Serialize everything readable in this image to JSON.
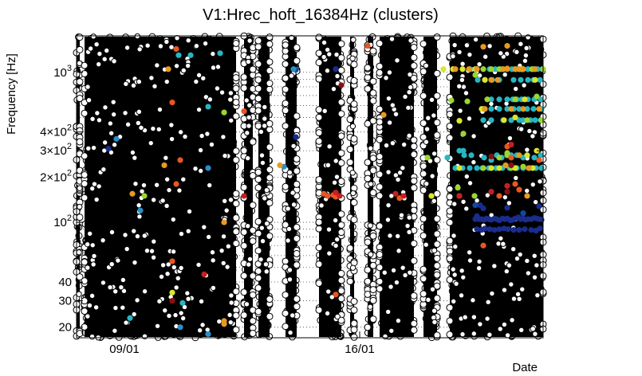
{
  "chart_data": {
    "type": "scatter",
    "title": "V1:Hrec_hoft_16384Hz (clusters)",
    "xlabel": "Date",
    "ylabel": "Frequency [Hz]",
    "yscale": "log",
    "ylim": [
      17,
      1750
    ],
    "xlim": [
      0,
      585
    ],
    "grid": "dotted horizontal at 10^2 and 10^3",
    "x_ticks": [
      {
        "x": 60,
        "label": "09/01"
      },
      {
        "x": 355,
        "label": "16/01"
      }
    ],
    "y_ticks": [
      {
        "value": 20,
        "mantissa": "20",
        "exp": ""
      },
      {
        "value": 30,
        "mantissa": "30",
        "exp": ""
      },
      {
        "value": 40,
        "mantissa": "40",
        "exp": ""
      },
      {
        "value": 100,
        "mantissa": "10",
        "exp": "2"
      },
      {
        "value": 200,
        "mantissa": "2×10",
        "exp": "2"
      },
      {
        "value": 300,
        "mantissa": "3×10",
        "exp": "2"
      },
      {
        "value": 400,
        "mantissa": "4×10",
        "exp": "2"
      },
      {
        "value": 1000,
        "mantissa": "10",
        "exp": "3"
      }
    ],
    "background_clusters": {
      "marker": "open black circle",
      "dense_columns": [
        [
          -2,
          4
        ],
        [
          10,
          200
        ],
        [
          210,
          221
        ],
        [
          228,
          242
        ],
        [
          262,
          276
        ],
        [
          304,
          332
        ],
        [
          343,
          348
        ],
        [
          365,
          372
        ],
        [
          380,
          423
        ],
        [
          435,
          452
        ],
        [
          468,
          585
        ]
      ],
      "y_range": [
        17,
        1750
      ]
    },
    "series": [
      {
        "color": "#1a2c8c",
        "points": [
          [
            40,
            310
          ],
          [
            275,
            370
          ],
          [
            325,
            1050
          ],
          [
            325,
            1050
          ],
          [
            500,
            105
          ],
          [
            502,
            110
          ],
          [
            505,
            105
          ],
          [
            508,
            105
          ],
          [
            511,
            104
          ],
          [
            514,
            106
          ],
          [
            517,
            105
          ],
          [
            520,
            104
          ],
          [
            524,
            106
          ],
          [
            527,
            105
          ],
          [
            530,
            103
          ],
          [
            534,
            106
          ],
          [
            537,
            105
          ],
          [
            540,
            106
          ],
          [
            544,
            103
          ],
          [
            547,
            104
          ],
          [
            550,
            106
          ],
          [
            554,
            108
          ],
          [
            557,
            105
          ],
          [
            560,
            106
          ],
          [
            563,
            104
          ],
          [
            566,
            105
          ],
          [
            570,
            105
          ],
          [
            574,
            107
          ],
          [
            577,
            106
          ],
          [
            580,
            105
          ],
          [
            583,
            104
          ],
          [
            502,
            90
          ],
          [
            508,
            89
          ],
          [
            512,
            91
          ],
          [
            518,
            90
          ],
          [
            524,
            89
          ],
          [
            530,
            90
          ],
          [
            536,
            91
          ],
          [
            541,
            90
          ],
          [
            548,
            89
          ],
          [
            555,
            89
          ],
          [
            562,
            90
          ],
          [
            570,
            89
          ],
          [
            576,
            88
          ],
          [
            581,
            91
          ],
          [
            510,
            124
          ],
          [
            540,
            125
          ],
          [
            580,
            128
          ],
          [
            506,
            130
          ]
        ]
      },
      {
        "color": "#0f4aa0",
        "points": [
          [
            275,
            1040
          ],
          [
            500,
            130
          ],
          [
            560,
            115
          ]
        ]
      },
      {
        "color": "#2b8ec8",
        "points": [
          [
            50,
            360
          ],
          [
            80,
            120
          ],
          [
            165,
            230
          ],
          [
            260,
            235
          ],
          [
            272,
            1050
          ],
          [
            130,
            20
          ],
          [
            165,
            18
          ]
        ]
      },
      {
        "color": "#27b5c2",
        "points": [
          [
            165,
            590
          ],
          [
            128,
            1300
          ],
          [
            143,
            1300
          ],
          [
            180,
            1340
          ],
          [
            67,
            23
          ],
          [
            133,
            29
          ],
          [
            465,
            270
          ],
          [
            480,
            300
          ],
          [
            485,
            300
          ],
          [
            502,
            1050
          ],
          [
            518,
            1050
          ],
          [
            525,
            1050
          ],
          [
            532,
            1050
          ],
          [
            540,
            1050
          ],
          [
            546,
            1050
          ],
          [
            551,
            1050
          ],
          [
            555,
            1050
          ],
          [
            560,
            1050
          ],
          [
            566,
            1050
          ],
          [
            573,
            1050
          ],
          [
            578,
            1050
          ],
          [
            584,
            1050
          ],
          [
            520,
            660
          ],
          [
            530,
            660
          ],
          [
            540,
            660
          ],
          [
            547,
            660
          ],
          [
            552,
            660
          ],
          [
            558,
            660
          ],
          [
            566,
            660
          ],
          [
            574,
            660
          ],
          [
            582,
            660
          ],
          [
            510,
            480
          ],
          [
            520,
            480
          ],
          [
            535,
            480
          ],
          [
            545,
            480
          ],
          [
            555,
            480
          ],
          [
            560,
            480
          ],
          [
            569,
            480
          ],
          [
            575,
            480
          ],
          [
            582,
            480
          ],
          [
            486,
            280
          ],
          [
            495,
            280
          ],
          [
            511,
            270
          ],
          [
            520,
            260
          ],
          [
            527,
            280
          ],
          [
            533,
            270
          ],
          [
            540,
            280
          ],
          [
            545,
            280
          ],
          [
            552,
            280
          ],
          [
            560,
            270
          ],
          [
            565,
            280
          ],
          [
            574,
            270
          ],
          [
            582,
            280
          ],
          [
            475,
            230
          ],
          [
            484,
            230
          ],
          [
            493,
            230
          ],
          [
            502,
            230
          ],
          [
            509,
            230
          ],
          [
            517,
            230
          ],
          [
            526,
            230
          ],
          [
            534,
            230
          ],
          [
            543,
            230
          ],
          [
            552,
            230
          ],
          [
            560,
            230
          ],
          [
            568,
            230
          ],
          [
            576,
            230
          ],
          [
            583,
            230
          ],
          [
            503,
            890
          ],
          [
            512,
            890
          ],
          [
            521,
            890
          ],
          [
            530,
            890
          ],
          [
            548,
            890
          ],
          [
            557,
            890
          ],
          [
            566,
            890
          ],
          [
            573,
            890
          ],
          [
            581,
            890
          ],
          [
            493,
            1050
          ],
          [
            510,
            570
          ],
          [
            520,
            570
          ],
          [
            530,
            570
          ],
          [
            540,
            570
          ],
          [
            548,
            570
          ],
          [
            555,
            570
          ],
          [
            565,
            570
          ],
          [
            573,
            570
          ],
          [
            583,
            570
          ]
        ]
      },
      {
        "color": "#9ad62f",
        "points": [
          [
            85,
            150
          ],
          [
            185,
            540
          ],
          [
            478,
            170
          ],
          [
            485,
            390
          ],
          [
            440,
            270
          ],
          [
            500,
            960
          ],
          [
            510,
            1050
          ],
          [
            520,
            1050
          ],
          [
            530,
            1050
          ],
          [
            559,
            1050
          ],
          [
            571,
            1050
          ],
          [
            585,
            1050
          ],
          [
            470,
            650
          ],
          [
            515,
            660
          ],
          [
            550,
            660
          ],
          [
            490,
            640
          ],
          [
            565,
            480
          ],
          [
            583,
            480
          ],
          [
            577,
            690
          ],
          [
            540,
            280
          ],
          [
            530,
            270
          ],
          [
            499,
            150
          ],
          [
            540,
            290
          ],
          [
            545,
            230
          ],
          [
            510,
            230
          ],
          [
            560,
            235
          ]
        ]
      },
      {
        "color": "#dde52a",
        "points": [
          [
            120,
            34
          ],
          [
            445,
            150
          ],
          [
            460,
            1050
          ],
          [
            484,
            1050
          ],
          [
            472,
            1050
          ],
          [
            508,
            570
          ],
          [
            512,
            890
          ],
          [
            536,
            480
          ],
          [
            550,
            500
          ],
          [
            558,
            1050
          ],
          [
            562,
            660
          ],
          [
            575,
            890
          ],
          [
            520,
            230
          ],
          [
            550,
            230
          ],
          [
            572,
            230
          ],
          [
            480,
            230
          ],
          [
            530,
            230
          ],
          [
            500,
            1050
          ],
          [
            480,
            475
          ],
          [
            577,
            300
          ],
          [
            565,
            280
          ]
        ]
      },
      {
        "color": "#e89a1f",
        "points": [
          [
            70,
            155
          ],
          [
            110,
            240
          ],
          [
            115,
            1880
          ],
          [
            115,
            1050
          ],
          [
            185,
            22
          ],
          [
            185,
            21
          ],
          [
            255,
            240
          ],
          [
            385,
            520
          ],
          [
            480,
            150
          ],
          [
            540,
            1060
          ],
          [
            545,
            570
          ],
          [
            550,
            1050
          ],
          [
            560,
            1050
          ],
          [
            502,
            1050
          ],
          [
            512,
            570
          ],
          [
            528,
            890
          ],
          [
            538,
            240
          ],
          [
            565,
            150
          ],
          [
            555,
            1050
          ],
          [
            575,
            1050
          ],
          [
            535,
            1050
          ],
          [
            475,
            1050
          ],
          [
            492,
            1050
          ],
          [
            560,
            570
          ],
          [
            580,
            570
          ],
          [
            520,
            890
          ],
          [
            567,
            230
          ],
          [
            555,
            280
          ],
          [
            510,
            1480
          ],
          [
            540,
            1500
          ],
          [
            185,
            100
          ]
        ]
      },
      {
        "color": "#e8571f",
        "points": [
          [
            120,
            630
          ],
          [
            125,
            1430
          ],
          [
            125,
            180
          ],
          [
            130,
            260
          ],
          [
            210,
            550
          ],
          [
            310,
            155
          ],
          [
            315,
            150
          ],
          [
            322,
            152
          ],
          [
            325,
            148
          ],
          [
            405,
            145
          ],
          [
            365,
            1500
          ],
          [
            325,
            33
          ],
          [
            120,
            55
          ],
          [
            530,
            150
          ],
          [
            510,
            70
          ],
          [
            580,
            260
          ],
          [
            540,
            320
          ],
          [
            545,
            270
          ],
          [
            550,
            180
          ],
          [
            555,
            165
          ],
          [
            590,
            1550
          ]
        ]
      },
      {
        "color": "#c81f1f",
        "points": [
          [
            -5,
            155
          ],
          [
            -5,
            225
          ],
          [
            210,
            150
          ],
          [
            160,
            45
          ],
          [
            120,
            30
          ],
          [
            330,
            150
          ],
          [
            400,
            155
          ],
          [
            410,
            150
          ],
          [
            325,
            158
          ],
          [
            520,
            160
          ],
          [
            540,
            175
          ],
          [
            545,
            330
          ],
          [
            480,
            150
          ]
        ]
      },
      {
        "color": "#8a0f0f",
        "points": [
          [
            332,
            820
          ],
          [
            120,
            30
          ],
          [
            540,
            160
          ],
          [
            520,
            275
          ],
          [
            545,
            240
          ]
        ]
      }
    ]
  }
}
